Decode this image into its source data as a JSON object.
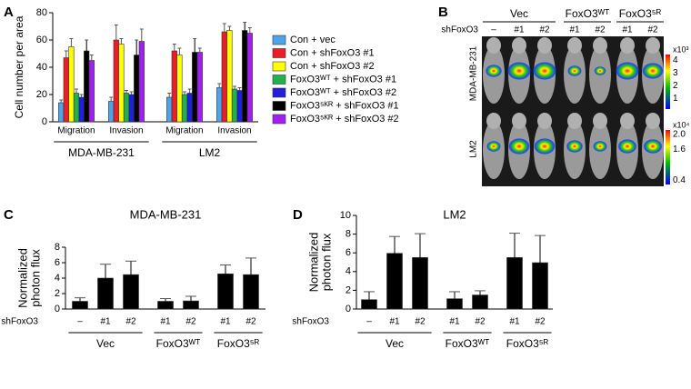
{
  "panel_labels": [
    "A",
    "B",
    "C",
    "D"
  ],
  "chart_data": [
    {
      "type": "bar",
      "ylabel": "Cell number per area",
      "groups": [
        {
          "label": "MDA-MB-231",
          "categories": [
            "Migration",
            "Invasion"
          ]
        },
        {
          "label": "LM2",
          "categories": [
            "Migration",
            "Invasion"
          ]
        }
      ],
      "ylim": [
        0,
        80
      ],
      "yticks": [
        0,
        20,
        40,
        60,
        80
      ],
      "legend": "right",
      "series": [
        {
          "name": "Con + vec",
          "color": "#4fa3e8",
          "values": [
            14,
            15,
            18,
            25
          ],
          "errors": [
            2,
            3,
            3,
            3
          ]
        },
        {
          "name": "Con + shFoxO3 #1",
          "color": "#ee1c24",
          "values": [
            47,
            60,
            52,
            66
          ],
          "errors": [
            5,
            11,
            5,
            6
          ]
        },
        {
          "name": "Con + shFoxO3 #2",
          "color": "#ffff00",
          "values": [
            55,
            57,
            49,
            67
          ],
          "errors": [
            6,
            4,
            5,
            3
          ]
        },
        {
          "name": "FoxO3ᵂᵀ + shFoxO3 #1",
          "color": "#22b14c",
          "values": [
            21,
            21,
            20,
            24
          ],
          "errors": [
            3,
            2,
            2,
            2
          ]
        },
        {
          "name": "FoxO3ᵂᵀ + shFoxO3 #2",
          "color": "#1f1fdc",
          "values": [
            18,
            20,
            21,
            23
          ],
          "errors": [
            2,
            2,
            3,
            2
          ]
        },
        {
          "name": "FoxO3⁵ᴷᴿ + shFoxO3 #1",
          "color": "#000000",
          "values": [
            52,
            49,
            51,
            67
          ],
          "errors": [
            8,
            11,
            10,
            6
          ]
        },
        {
          "name": "FoxO3⁵ᴷᴿ + shFoxO3 #2",
          "color": "#a020f0",
          "values": [
            45,
            59,
            51,
            65
          ],
          "errors": [
            4,
            9,
            3,
            4
          ]
        }
      ]
    },
    {
      "type": "bar",
      "title": "MDA-MB-231",
      "ylabel": [
        "Normalized",
        "photon flux"
      ],
      "row_label": "shFoxO3",
      "groups": [
        {
          "label": "Vec",
          "categories": [
            "–",
            "#1",
            "#2"
          ]
        },
        {
          "label": "FoxO3ᵂᵀ",
          "categories": [
            "#1",
            "#2"
          ]
        },
        {
          "label": "FoxO3⁵ᴿ",
          "categories": [
            "#1",
            "#2"
          ]
        }
      ],
      "ylim": [
        0,
        8
      ],
      "yticks": [
        0,
        2,
        4,
        6,
        8
      ],
      "color": "#000000",
      "values": [
        1.0,
        4.0,
        4.45,
        1.0,
        1.05,
        4.55,
        4.45
      ],
      "errors": [
        0.45,
        1.8,
        1.75,
        0.35,
        0.6,
        1.15,
        2.15
      ]
    },
    {
      "type": "bar",
      "title": "LM2",
      "ylabel": [
        "Normalized",
        "photon flux"
      ],
      "row_label": "shFoxO3",
      "groups": [
        {
          "label": "Vec",
          "categories": [
            "–",
            "#1",
            "#2"
          ]
        },
        {
          "label": "FoxO3ᵂᵀ",
          "categories": [
            "#1",
            "#2"
          ]
        },
        {
          "label": "FoxO3⁵ᴿ",
          "categories": [
            "#1",
            "#2"
          ]
        }
      ],
      "ylim": [
        0,
        10
      ],
      "yticks": [
        0,
        2,
        4,
        6,
        8,
        10
      ],
      "color": "#000000",
      "values": [
        1.0,
        5.95,
        5.5,
        1.1,
        1.5,
        5.5,
        4.95
      ],
      "errors": [
        0.85,
        1.8,
        2.55,
        0.75,
        0.45,
        2.6,
        2.9
      ]
    }
  ],
  "image_panel": {
    "group_labels": [
      "Vec",
      "FoxO3ᵂᵀ",
      "FoxO3⁵ᴿ"
    ],
    "row_label": "shFoxO3",
    "column_labels": [
      "–",
      "#1",
      "#2",
      "#1",
      "#2",
      "#1",
      "#2"
    ],
    "row_labels": [
      "MDA-MB-231",
      "LM2"
    ],
    "colorbars": [
      {
        "unit": "x10³",
        "ticks": [
          "4",
          "3",
          "2",
          "1"
        ]
      },
      {
        "unit": "x10⁴",
        "ticks": [
          "2.0",
          "1.6",
          "0.4"
        ]
      }
    ]
  }
}
